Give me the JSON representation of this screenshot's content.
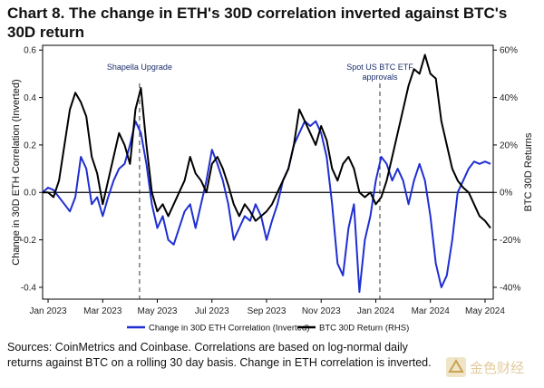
{
  "title": "Chart 8. The change in ETH's 30D correlation inverted against BTC's 30D return",
  "source_text": "Sources: CoinMetrics and Coinbase. Correlations are based on log-normal daily returns against BTC on a rolling 30 day basis. Change in ETH correlation is inverted.",
  "logo_text": "金色财经",
  "chart_data": {
    "type": "line",
    "title": "Chart 8. The change in ETH's 30D correlation inverted against BTC's 30D return",
    "ylabel": "Change in 30D ETH Correlation (Inverted)",
    "y2label": "BTC 30D Returns",
    "ylim": [
      -0.45,
      0.62
    ],
    "y2lim": [
      -0.45,
      0.62
    ],
    "xlim": [
      0,
      16.5
    ],
    "y_ticks": [
      -0.4,
      -0.2,
      0.0,
      0.2,
      0.4,
      0.6
    ],
    "y_tick_labels": [
      "-0.4",
      "-0.2",
      "0.0",
      "0.2",
      "0.4",
      "0.6"
    ],
    "y2_ticks": [
      -0.4,
      -0.2,
      0.0,
      0.2,
      0.4,
      0.6
    ],
    "y2_tick_labels": [
      "-40%",
      "-20%",
      "0%",
      "20%",
      "40%",
      "60%"
    ],
    "x_ticks": [
      0.2,
      2.2,
      4.2,
      6.2,
      8.2,
      10.2,
      12.2,
      14.2,
      16.2
    ],
    "x_tick_labels": [
      "Jan 2023",
      "Mar 2023",
      "May 2023",
      "Jul 2023",
      "Sep 2023",
      "Nov 2023",
      "Jan 2024",
      "Mar 2024",
      "May 2024"
    ],
    "annotations": [
      {
        "x": 3.55,
        "text": [
          "Shapella Upgrade"
        ]
      },
      {
        "x": 12.35,
        "text": [
          "Spot US BTC ETF",
          "approvals"
        ]
      }
    ],
    "legend": "bottom",
    "series": [
      {
        "name": "Change in 30D ETH Correlation (Inverted)",
        "color": "#1f2fd1",
        "x": [
          0.0,
          0.2,
          0.4,
          0.6,
          0.8,
          1.0,
          1.2,
          1.4,
          1.6,
          1.8,
          2.0,
          2.2,
          2.4,
          2.6,
          2.8,
          3.0,
          3.2,
          3.4,
          3.6,
          3.8,
          4.0,
          4.2,
          4.4,
          4.6,
          4.8,
          5.0,
          5.2,
          5.4,
          5.6,
          5.8,
          6.0,
          6.2,
          6.4,
          6.6,
          6.8,
          7.0,
          7.2,
          7.4,
          7.6,
          7.8,
          8.0,
          8.2,
          8.4,
          8.6,
          8.8,
          9.0,
          9.2,
          9.4,
          9.6,
          9.8,
          10.0,
          10.2,
          10.4,
          10.6,
          10.8,
          11.0,
          11.2,
          11.4,
          11.6,
          11.8,
          12.0,
          12.2,
          12.4,
          12.6,
          12.8,
          13.0,
          13.2,
          13.4,
          13.6,
          13.8,
          14.0,
          14.2,
          14.4,
          14.6,
          14.8,
          15.0,
          15.2,
          15.4,
          15.6,
          15.8,
          16.0,
          16.2,
          16.4
        ],
        "y": [
          0.0,
          0.02,
          0.01,
          -0.02,
          -0.05,
          -0.08,
          -0.02,
          0.15,
          0.1,
          -0.05,
          -0.02,
          -0.1,
          -0.02,
          0.05,
          0.1,
          0.12,
          0.2,
          0.3,
          0.25,
          0.12,
          -0.05,
          -0.15,
          -0.1,
          -0.2,
          -0.22,
          -0.15,
          -0.08,
          -0.05,
          -0.15,
          -0.05,
          0.05,
          0.18,
          0.12,
          0.05,
          -0.05,
          -0.2,
          -0.15,
          -0.1,
          -0.12,
          -0.05,
          -0.1,
          -0.2,
          -0.12,
          -0.05,
          0.05,
          0.1,
          0.2,
          0.25,
          0.3,
          0.28,
          0.3,
          0.25,
          0.15,
          -0.05,
          -0.3,
          -0.35,
          -0.15,
          -0.05,
          -0.42,
          -0.2,
          -0.1,
          0.05,
          0.15,
          0.12,
          0.05,
          0.1,
          0.05,
          -0.05,
          0.05,
          0.12,
          0.05,
          -0.1,
          -0.3,
          -0.4,
          -0.35,
          -0.2,
          0.0,
          0.05,
          0.1,
          0.13,
          0.12,
          0.13,
          0.12
        ]
      },
      {
        "name": "BTC 30D Return (RHS)",
        "color": "#000000",
        "x": [
          0.0,
          0.2,
          0.4,
          0.6,
          0.8,
          1.0,
          1.2,
          1.4,
          1.6,
          1.8,
          2.0,
          2.2,
          2.4,
          2.6,
          2.8,
          3.0,
          3.2,
          3.4,
          3.6,
          3.8,
          4.0,
          4.2,
          4.4,
          4.6,
          4.8,
          5.0,
          5.2,
          5.4,
          5.6,
          5.8,
          6.0,
          6.2,
          6.4,
          6.6,
          6.8,
          7.0,
          7.2,
          7.4,
          7.6,
          7.8,
          8.0,
          8.2,
          8.4,
          8.6,
          8.8,
          9.0,
          9.2,
          9.4,
          9.6,
          9.8,
          10.0,
          10.2,
          10.4,
          10.6,
          10.8,
          11.0,
          11.2,
          11.4,
          11.6,
          11.8,
          12.0,
          12.2,
          12.4,
          12.6,
          12.8,
          13.0,
          13.2,
          13.4,
          13.6,
          13.8,
          14.0,
          14.2,
          14.4,
          14.6,
          14.8,
          15.0,
          15.2,
          15.4,
          15.6,
          15.8,
          16.0,
          16.2,
          16.4
        ],
        "y": [
          0.0,
          0.0,
          -0.02,
          0.05,
          0.2,
          0.35,
          0.42,
          0.38,
          0.32,
          0.15,
          0.08,
          -0.05,
          0.05,
          0.15,
          0.25,
          0.2,
          0.12,
          0.35,
          0.44,
          0.2,
          0.0,
          -0.08,
          -0.05,
          -0.1,
          -0.05,
          0.0,
          0.05,
          0.15,
          0.08,
          0.05,
          0.0,
          0.12,
          0.15,
          0.1,
          0.03,
          -0.05,
          -0.1,
          -0.05,
          -0.08,
          -0.12,
          -0.1,
          -0.08,
          -0.05,
          0.0,
          0.05,
          0.1,
          0.2,
          0.35,
          0.3,
          0.25,
          0.2,
          0.28,
          0.22,
          0.1,
          0.05,
          0.12,
          0.15,
          0.1,
          0.0,
          -0.02,
          0.0,
          -0.05,
          -0.02,
          0.05,
          0.15,
          0.25,
          0.35,
          0.45,
          0.52,
          0.5,
          0.58,
          0.5,
          0.48,
          0.3,
          0.2,
          0.1,
          0.05,
          0.02,
          0.0,
          -0.05,
          -0.1,
          -0.12,
          -0.15
        ]
      }
    ]
  }
}
